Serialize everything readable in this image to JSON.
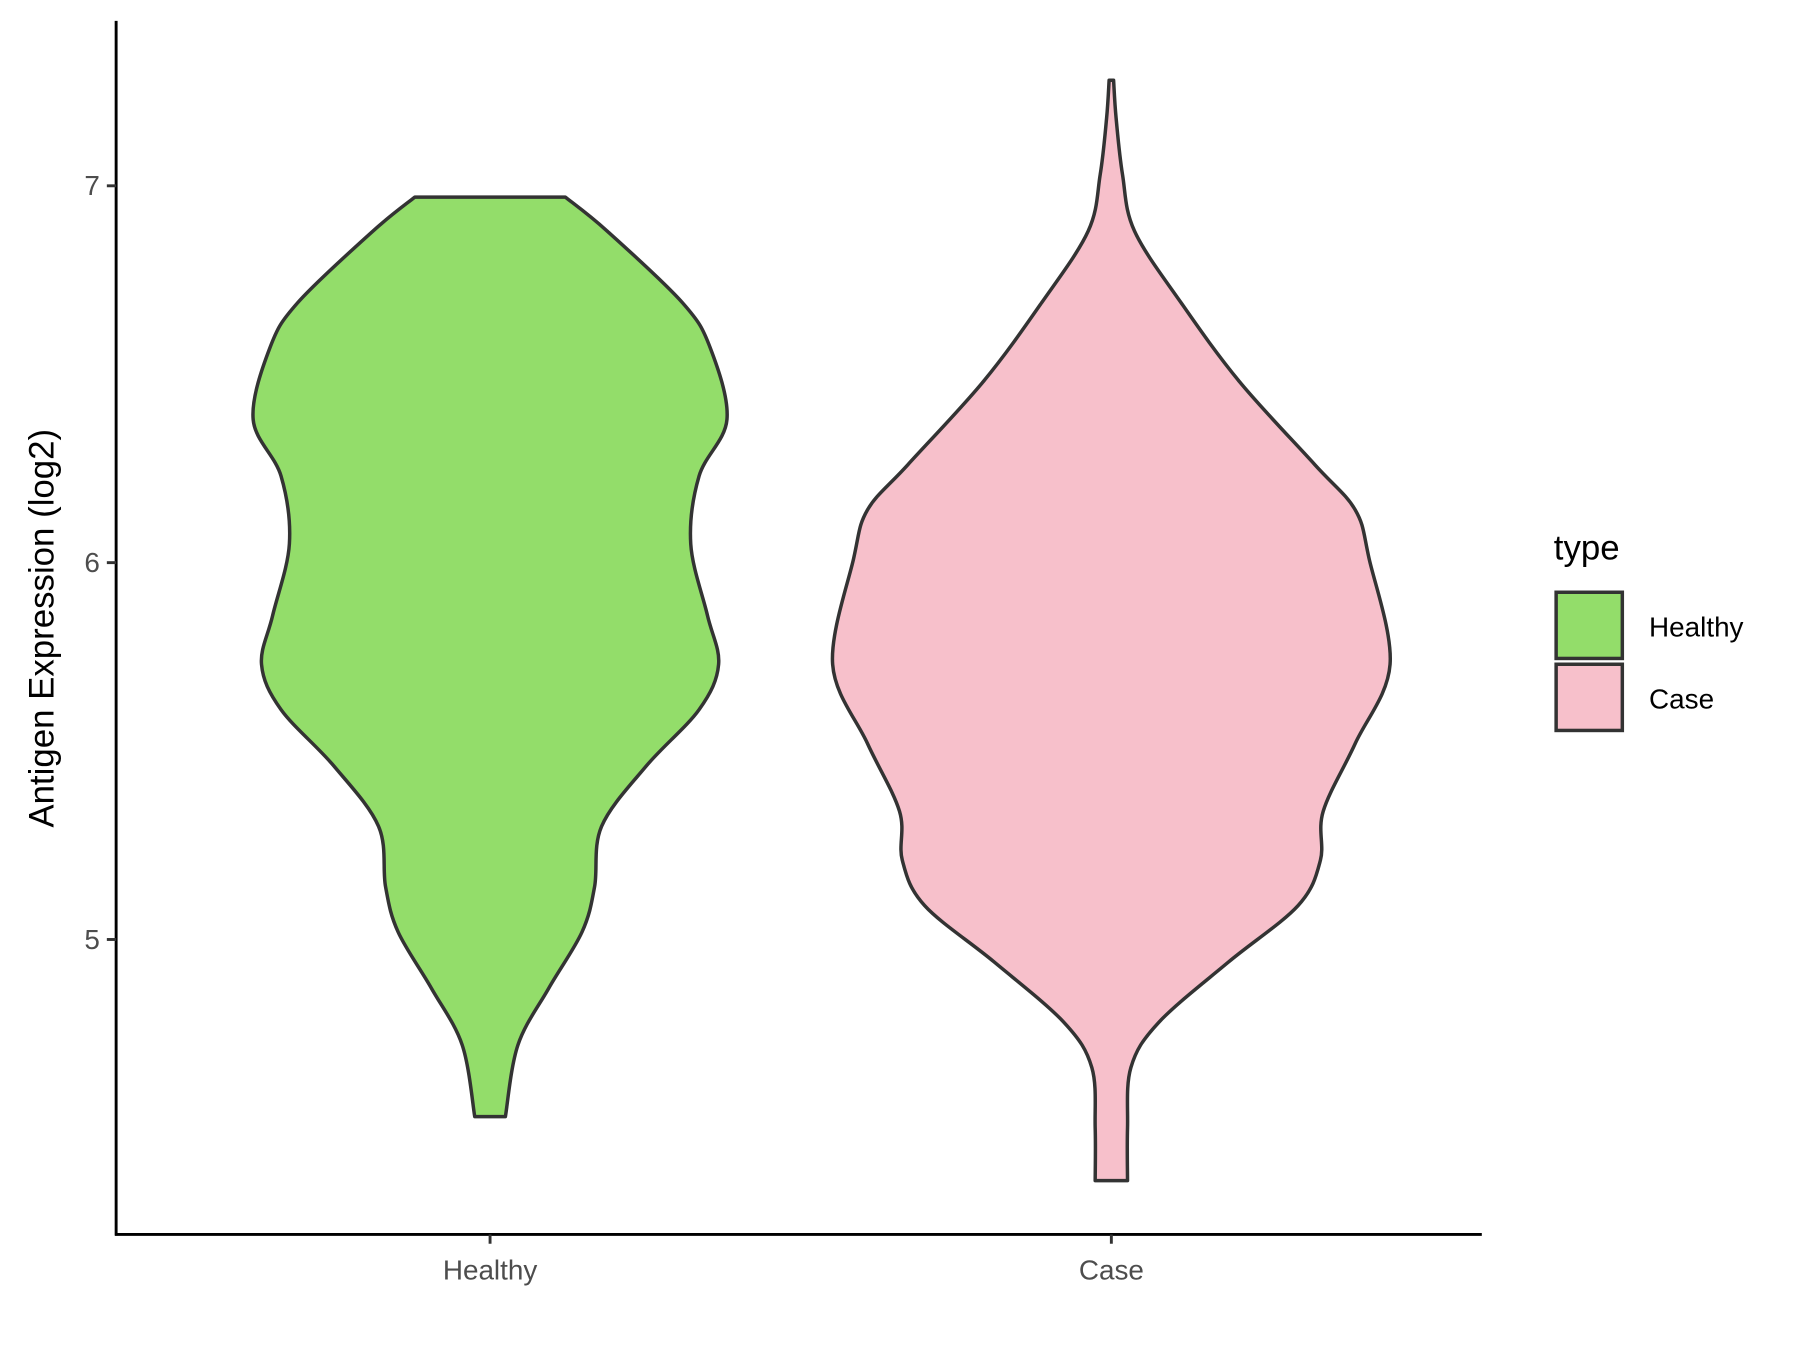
{
  "chart_data": {
    "type": "violin",
    "title": "",
    "xlabel": "",
    "ylabel": "Antigen Expression (log2)",
    "ylim": [
      4.22,
      7.44
    ],
    "yticks": [
      5,
      6,
      7
    ],
    "grid": false,
    "categories": [
      "Healthy",
      "Case"
    ],
    "legend": {
      "title": "type",
      "position": "right",
      "entries": [
        "Healthy",
        "Case"
      ]
    },
    "colors": {
      "Healthy": "#93DD6A",
      "Case": "#F7C0CB",
      "outline": "#333333"
    },
    "series": [
      {
        "name": "Healthy",
        "min": 4.53,
        "max": 6.97,
        "profile_relative_width": [
          [
            6.97,
            0.27
          ],
          [
            6.88,
            0.42
          ],
          [
            6.69,
            0.69
          ],
          [
            6.57,
            0.79
          ],
          [
            6.38,
            0.85
          ],
          [
            6.23,
            0.75
          ],
          [
            6.05,
            0.72
          ],
          [
            5.86,
            0.78
          ],
          [
            5.73,
            0.82
          ],
          [
            5.61,
            0.75
          ],
          [
            5.46,
            0.56
          ],
          [
            5.3,
            0.4
          ],
          [
            5.14,
            0.375
          ],
          [
            5.02,
            0.33
          ],
          [
            4.87,
            0.21
          ],
          [
            4.72,
            0.1
          ],
          [
            4.53,
            0.055
          ]
        ]
      },
      {
        "name": "Case",
        "min": 4.36,
        "max": 7.28,
        "profile_relative_width": [
          [
            7.28,
            0.008
          ],
          [
            7.18,
            0.017
          ],
          [
            7.03,
            0.04
          ],
          [
            6.88,
            0.083
          ],
          [
            6.69,
            0.25
          ],
          [
            6.48,
            0.46
          ],
          [
            6.26,
            0.73
          ],
          [
            6.14,
            0.875
          ],
          [
            6.01,
            0.925
          ],
          [
            5.73,
            1.0
          ],
          [
            5.52,
            0.875
          ],
          [
            5.34,
            0.76
          ],
          [
            5.21,
            0.75
          ],
          [
            5.09,
            0.67
          ],
          [
            4.94,
            0.42
          ],
          [
            4.78,
            0.17
          ],
          [
            4.66,
            0.07
          ],
          [
            4.5,
            0.058
          ],
          [
            4.36,
            0.058
          ]
        ]
      }
    ]
  }
}
